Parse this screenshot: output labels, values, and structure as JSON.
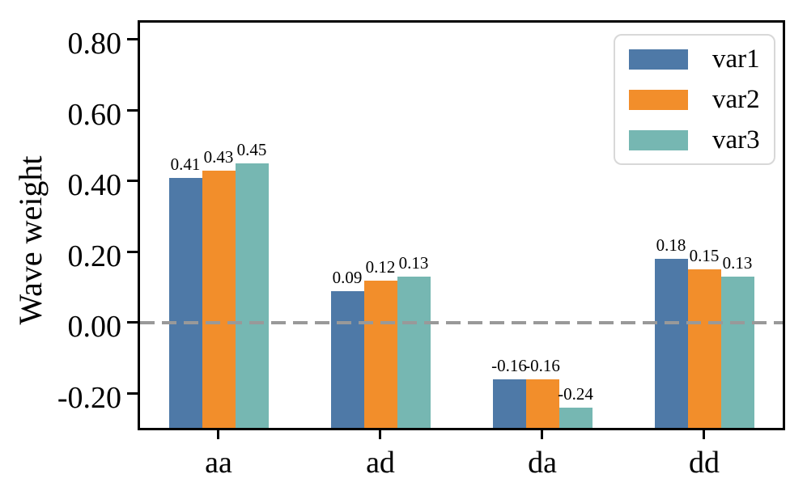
{
  "chart_data": {
    "type": "bar",
    "title": "",
    "xlabel": "",
    "ylabel": "Wave weight",
    "categories": [
      "aa",
      "ad",
      "da",
      "dd"
    ],
    "series": [
      {
        "name": "var1",
        "color": "#4E79A7",
        "values": [
          0.41,
          0.09,
          -0.16,
          0.18
        ],
        "labels": [
          "0.41",
          "0.09",
          "-0.16",
          "0.18"
        ]
      },
      {
        "name": "var2",
        "color": "#F28E2B",
        "values": [
          0.43,
          0.12,
          -0.16,
          0.15
        ],
        "labels": [
          "0.43",
          "0.12",
          "-0.16",
          "0.15"
        ]
      },
      {
        "name": "var3",
        "color": "#76B7B2",
        "values": [
          0.45,
          0.13,
          -0.24,
          0.13
        ],
        "labels": [
          "0.45",
          "0.13",
          "-0.24",
          "0.13"
        ]
      }
    ],
    "yticks": [
      {
        "value": 0.8,
        "label": "0.80"
      },
      {
        "value": 0.6,
        "label": "0.60"
      },
      {
        "value": 0.4,
        "label": "0.40"
      },
      {
        "value": 0.2,
        "label": "0.20"
      },
      {
        "value": 0.0,
        "label": "0.00"
      },
      {
        "value": -0.2,
        "label": "-0.20"
      }
    ],
    "ylim": [
      -0.304,
      0.855
    ],
    "zero_line": {
      "value": 0,
      "style": "dashed",
      "color": "#999999"
    },
    "legend": {
      "position": "upper right",
      "entries": [
        "var1",
        "var2",
        "var3"
      ]
    },
    "layout_hints": {
      "grid": false,
      "bar_base": "axis_bottom",
      "value_labels_shown": true
    }
  },
  "colors": {
    "background": "#ffffff",
    "axis": "#000000",
    "legend_border": "#d8d8d8"
  }
}
